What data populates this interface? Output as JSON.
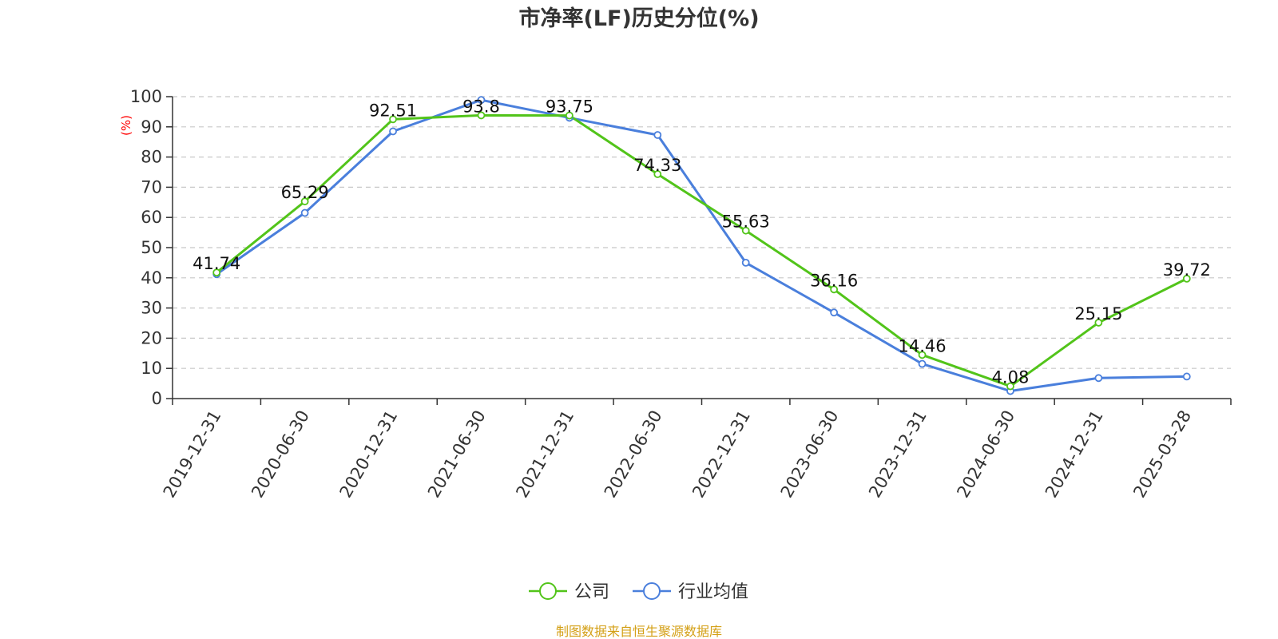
{
  "chart_data": {
    "type": "line",
    "title": "市净率(LF)历史分位(%)",
    "ylabel": "(%)",
    "xlabel": "",
    "ylim": [
      0,
      100
    ],
    "yticks": [
      "0",
      "10",
      "20",
      "30",
      "40",
      "50",
      "60",
      "70",
      "80",
      "90",
      "100"
    ],
    "categories": [
      "2019-12-31",
      "2020-06-30",
      "2020-12-31",
      "2021-06-30",
      "2021-12-31",
      "2022-06-30",
      "2022-12-31",
      "2023-06-30",
      "2023-12-31",
      "2024-06-30",
      "2024-12-31",
      "2025-03-28"
    ],
    "series": [
      {
        "name": "公司",
        "color": "#52c41a",
        "values": [
          41.74,
          65.29,
          92.51,
          93.8,
          93.75,
          74.33,
          55.63,
          36.16,
          14.46,
          4.08,
          25.15,
          39.72
        ],
        "labels": [
          "41.74",
          "65.29",
          "92.51",
          "93.8",
          "93.75",
          "74.33",
          "55.63",
          "36.16",
          "14.46",
          "4.08",
          "25.15",
          "39.72"
        ]
      },
      {
        "name": "行业均值",
        "color": "#4a7fdc",
        "values": [
          41.2,
          61.5,
          88.5,
          98.9,
          93.0,
          87.3,
          45.0,
          28.5,
          11.5,
          2.5,
          6.8,
          7.3
        ]
      }
    ],
    "grid": true,
    "legend_position": "bottom-center",
    "unit_color": "#ff0000"
  },
  "footer": {
    "source": "制图数据来自恒生聚源数据库",
    "source_color": "#d4a017"
  }
}
